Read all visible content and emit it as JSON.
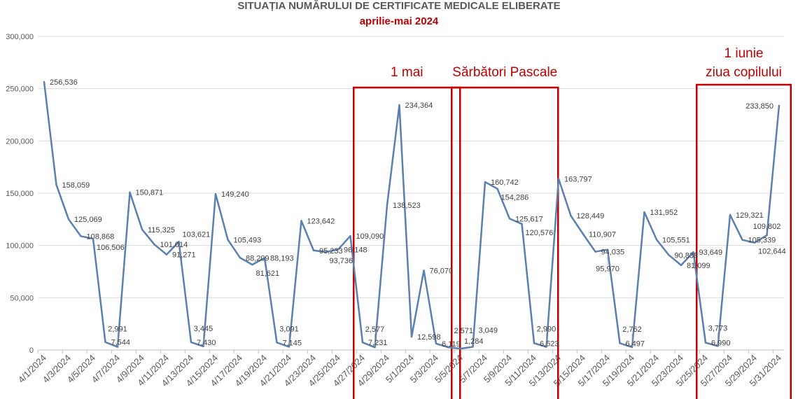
{
  "chart_data": {
    "type": "line",
    "title": "SITUAȚIA  NUMĂRULUI DE CERTIFICATE MEDICALE ELIBERATE",
    "subtitle": "aprilie-mai 2024",
    "xlabel": "",
    "ylabel": "",
    "ylim": [
      0,
      300000
    ],
    "yticks": [
      0,
      50000,
      100000,
      150000,
      200000,
      250000,
      300000
    ],
    "ytick_labels": [
      "0",
      "50,000",
      "100,000",
      "150,000",
      "200,000",
      "250,000",
      "300,000"
    ],
    "grid": true,
    "legend": "none",
    "line_color": "#5b7fae",
    "x": [
      "4/1/2024",
      "4/2/2024",
      "4/3/2024",
      "4/4/2024",
      "4/5/2024",
      "4/6/2024",
      "4/7/2024",
      "4/8/2024",
      "4/9/2024",
      "4/10/2024",
      "4/11/2024",
      "4/12/2024",
      "4/13/2024",
      "4/14/2024",
      "4/15/2024",
      "4/16/2024",
      "4/17/2024",
      "4/18/2024",
      "4/19/2024",
      "4/20/2024",
      "4/21/2024",
      "4/22/2024",
      "4/23/2024",
      "4/24/2024",
      "4/25/2024",
      "4/26/2024",
      "4/27/2024",
      "4/28/2024",
      "4/29/2024",
      "4/30/2024",
      "5/1/2024",
      "5/2/2024",
      "5/3/2024",
      "5/4/2024",
      "5/5/2024",
      "5/6/2024",
      "5/7/2024",
      "5/8/2024",
      "5/9/2024",
      "5/10/2024",
      "5/11/2024",
      "5/12/2024",
      "5/13/2024",
      "5/14/2024",
      "5/15/2024",
      "5/16/2024",
      "5/17/2024",
      "5/18/2024",
      "5/19/2024",
      "5/20/2024",
      "5/21/2024",
      "5/22/2024",
      "5/23/2024",
      "5/24/2024",
      "5/25/2024",
      "5/26/2024",
      "5/27/2024",
      "5/28/2024",
      "5/29/2024",
      "5/30/2024",
      "5/31/2024"
    ],
    "values": [
      256536,
      158059,
      125069,
      108868,
      106506,
      7544,
      2991,
      150871,
      115325,
      101014,
      91271,
      103621,
      7430,
      3445,
      149240,
      105493,
      88209,
      81621,
      88193,
      7145,
      3091,
      123642,
      95233,
      93736,
      96148,
      109090,
      7231,
      2577,
      138523,
      234364,
      12598,
      76070,
      6119,
      2571,
      1284,
      3049,
      160742,
      154286,
      125617,
      120576,
      6523,
      2990,
      163797,
      128449,
      110907,
      94035,
      95970,
      6497,
      2762,
      131952,
      105551,
      90838,
      81099,
      93649,
      6990,
      3773,
      129321,
      105339,
      102644,
      109802,
      233850
    ],
    "annotations": [
      {
        "label": "1 mai",
        "from": "4/27/2024",
        "to": "5/4/2024",
        "color": "#c00000"
      },
      {
        "label": "Sărbători Pascale",
        "from": "5/5/2024",
        "to": "5/12/2024",
        "color": "#c00000"
      },
      {
        "label": "1 iunie",
        "label2": "ziua copilului",
        "from": "5/25/2024",
        "to": "5/31/2024",
        "color": "#c00000"
      }
    ]
  }
}
